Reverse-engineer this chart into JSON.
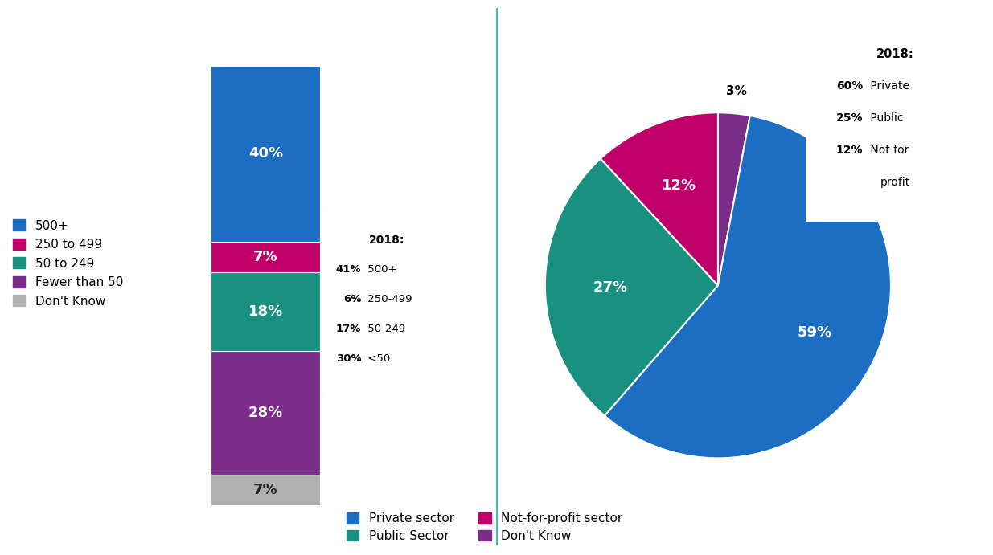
{
  "bar_values": [
    7,
    28,
    18,
    7,
    40
  ],
  "bar_colors": [
    "#b0b0b0",
    "#7b2d8b",
    "#1a9080",
    "#c0006a",
    "#1b6ec2"
  ],
  "bar_labels": [
    "7%",
    "28%",
    "18%",
    "7%",
    "40%"
  ],
  "bar_legend_labels": [
    "500+",
    "250 to 499",
    "50 to 249",
    "Fewer than 50",
    "Don't Know"
  ],
  "bar_legend_colors": [
    "#1b6ec2",
    "#c0006a",
    "#1a9080",
    "#7b2d8b",
    "#b0b0b0"
  ],
  "pie_values": [
    59,
    27,
    12,
    3
  ],
  "pie_colors": [
    "#1b6ec2",
    "#1a9080",
    "#c0006a",
    "#7b2d8b"
  ],
  "pie_labels": [
    "59%",
    "27%",
    "12%",
    "3%"
  ],
  "pie_legend_labels": [
    "Private sector",
    "Public Sector",
    "Not-for-profit sector",
    "Don't Know"
  ],
  "pie_legend_colors": [
    "#1b6ec2",
    "#1a9080",
    "#c0006a",
    "#7b2d8b"
  ],
  "box1_lines": [
    {
      "bold": "2018:",
      "normal": ""
    },
    {
      "bold": "41%",
      "normal": " 500+"
    },
    {
      "bold": "6%",
      "normal": " 250-499"
    },
    {
      "bold": "17%",
      "normal": " 50-249"
    },
    {
      "bold": "30%",
      "normal": " <50"
    }
  ],
  "box2_lines": [
    {
      "bold": "2018:",
      "normal": ""
    },
    {
      "bold": "60%",
      "normal": " Private"
    },
    {
      "bold": "25%",
      "normal": " Public"
    },
    {
      "bold": "12%",
      "normal": " Not for"
    },
    {
      "bold": "",
      "normal": "profit"
    }
  ],
  "divider_color": "#3dbfbf",
  "background_color": "#ffffff"
}
